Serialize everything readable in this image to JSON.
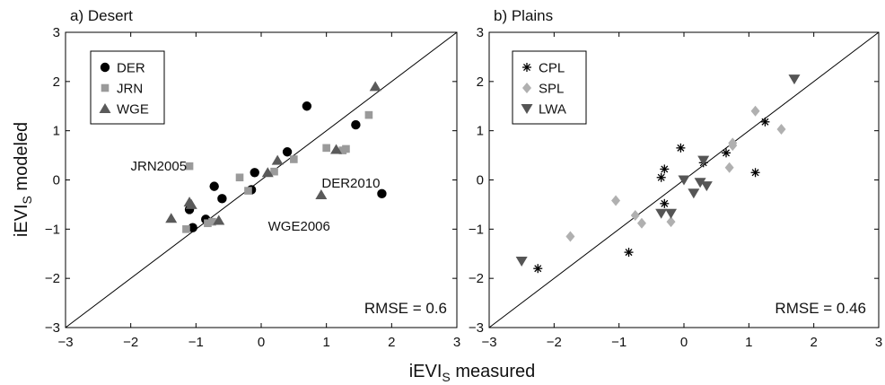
{
  "figure": {
    "xlabel_main": "iEVI",
    "xlabel_sub": "S",
    "xlabel_tail": " measured",
    "ylabel_main": "iEVI",
    "ylabel_sub": "S",
    "ylabel_tail": " modeled"
  },
  "chart_data": [
    {
      "type": "scatter",
      "title": "a) Desert",
      "xlim": [
        -3,
        3
      ],
      "ylim": [
        -3,
        3
      ],
      "xticks": [
        -3,
        -2,
        -1,
        0,
        1,
        2,
        3
      ],
      "yticks": [
        -3,
        -2,
        -1,
        0,
        1,
        2,
        3
      ],
      "tick_labels": [
        "−3",
        "−2",
        "−1",
        "0",
        "1",
        "2",
        "3"
      ],
      "reference_line": "1:1",
      "grid": false,
      "legend_position": "top-left",
      "rmse_label": "RMSE = 0.6",
      "annotations": [
        {
          "text": "JRN2005",
          "x": -1.1,
          "y": 0.28
        },
        {
          "text": "DER2010",
          "x": 1.85,
          "y": -0.28
        },
        {
          "text": "WGE2006",
          "x": 0.92,
          "y": -0.3
        }
      ],
      "series": [
        {
          "name": "DER",
          "marker": "circle",
          "color": "#000000",
          "points": [
            [
              -1.1,
              -0.6
            ],
            [
              -1.05,
              -0.97
            ],
            [
              -0.85,
              -0.8
            ],
            [
              -0.72,
              -0.13
            ],
            [
              -0.6,
              -0.38
            ],
            [
              -0.15,
              -0.2
            ],
            [
              -0.1,
              0.15
            ],
            [
              0.4,
              0.57
            ],
            [
              0.7,
              1.5
            ],
            [
              1.45,
              1.12
            ],
            [
              1.85,
              -0.28
            ]
          ]
        },
        {
          "name": "JRN",
          "marker": "square",
          "color": "#9a9a9a",
          "points": [
            [
              -1.15,
              -1.0
            ],
            [
              -1.1,
              0.28
            ],
            [
              -0.82,
              -0.88
            ],
            [
              -0.75,
              -0.85
            ],
            [
              -0.33,
              0.05
            ],
            [
              -0.2,
              -0.22
            ],
            [
              0.2,
              0.17
            ],
            [
              0.5,
              0.42
            ],
            [
              1.0,
              0.65
            ],
            [
              1.25,
              0.6
            ],
            [
              1.3,
              0.63
            ],
            [
              1.65,
              1.32
            ]
          ]
        },
        {
          "name": "WGE",
          "marker": "triangle-up",
          "color": "#5a5a5a",
          "points": [
            [
              -1.38,
              -0.78
            ],
            [
              -1.1,
              -0.45
            ],
            [
              -1.07,
              -0.5
            ],
            [
              -0.65,
              -0.82
            ],
            [
              0.1,
              0.15
            ],
            [
              0.25,
              0.4
            ],
            [
              1.15,
              0.62
            ],
            [
              0.92,
              -0.3
            ],
            [
              1.75,
              1.9
            ]
          ]
        }
      ]
    },
    {
      "type": "scatter",
      "title": "b) Plains",
      "xlim": [
        -3,
        3
      ],
      "ylim": [
        -3,
        3
      ],
      "xticks": [
        -3,
        -2,
        -1,
        0,
        1,
        2,
        3
      ],
      "yticks": [
        -3,
        -2,
        -1,
        0,
        1,
        2,
        3
      ],
      "tick_labels": [
        "−3",
        "−2",
        "−1",
        "0",
        "1",
        "2",
        "3"
      ],
      "reference_line": "1:1",
      "grid": false,
      "legend_position": "top-left",
      "rmse_label": "RMSE = 0.46",
      "annotations": [],
      "series": [
        {
          "name": "CPL",
          "marker": "asterisk",
          "color": "#000000",
          "points": [
            [
              -2.25,
              -1.8
            ],
            [
              -0.85,
              -1.47
            ],
            [
              -0.35,
              0.05
            ],
            [
              -0.3,
              0.22
            ],
            [
              -0.3,
              -0.48
            ],
            [
              -0.05,
              0.65
            ],
            [
              0.3,
              0.35
            ],
            [
              0.65,
              0.55
            ],
            [
              1.1,
              0.15
            ],
            [
              1.25,
              1.18
            ]
          ]
        },
        {
          "name": "SPL",
          "marker": "diamond",
          "color": "#b0b0b0",
          "points": [
            [
              -1.75,
              -1.15
            ],
            [
              -1.05,
              -0.42
            ],
            [
              -0.75,
              -0.72
            ],
            [
              -0.65,
              -0.88
            ],
            [
              -0.2,
              -0.85
            ],
            [
              0.7,
              0.25
            ],
            [
              0.75,
              0.7
            ],
            [
              0.75,
              0.75
            ],
            [
              1.1,
              1.4
            ],
            [
              1.5,
              1.03
            ]
          ]
        },
        {
          "name": "LWA",
          "marker": "triangle-down",
          "color": "#555555",
          "points": [
            [
              -2.5,
              -1.65
            ],
            [
              -0.35,
              -0.68
            ],
            [
              -0.2,
              -0.68
            ],
            [
              0.0,
              0.0
            ],
            [
              0.15,
              -0.27
            ],
            [
              0.25,
              -0.05
            ],
            [
              0.3,
              0.4
            ],
            [
              0.35,
              -0.12
            ],
            [
              1.7,
              2.05
            ]
          ]
        }
      ]
    }
  ]
}
